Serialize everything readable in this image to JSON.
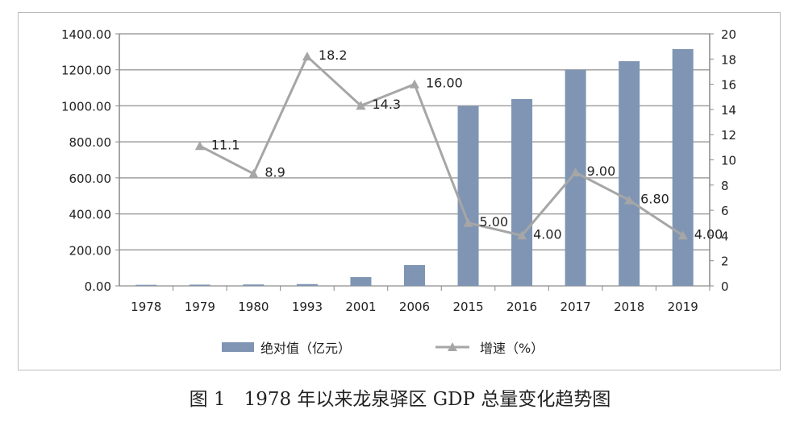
{
  "chart_data": {
    "type": "bar+line",
    "categories": [
      "1978",
      "1979",
      "1980",
      "1993",
      "2001",
      "2006",
      "2015",
      "2016",
      "2017",
      "2018",
      "2019"
    ],
    "series": [
      {
        "name": "绝对值（亿元）",
        "type": "bar",
        "axis": "left",
        "color": "#7f95b3",
        "values": [
          6,
          7,
          8,
          10,
          49,
          116,
          1000,
          1038,
          1200,
          1248,
          1315
        ]
      },
      {
        "name": "增速（%）",
        "type": "line",
        "axis": "right",
        "color": "#a6a6a6",
        "values": [
          null,
          11.1,
          8.9,
          18.2,
          14.3,
          16.0,
          5.0,
          4.0,
          9.0,
          6.8,
          4.0
        ],
        "labels": [
          null,
          "11.1",
          "8.9",
          "18.2",
          "14.3",
          "16.00",
          "5.00",
          "4.00",
          "9.00",
          "6.80",
          "4.00"
        ]
      }
    ],
    "ylim_left": [
      0,
      1400
    ],
    "yticks_left": [
      "0.00",
      "200.00",
      "400.00",
      "600.00",
      "800.00",
      "1000.00",
      "1200.00",
      "1400.00"
    ],
    "ylim_right": [
      0,
      20
    ],
    "yticks_right": [
      "0",
      "2",
      "4",
      "6",
      "8",
      "10",
      "12",
      "14",
      "16",
      "18",
      "20"
    ],
    "grid": true,
    "legend": "bottom",
    "caption": "图 1　1978 年以来龙泉驿区 GDP 总量变化趋势图"
  }
}
